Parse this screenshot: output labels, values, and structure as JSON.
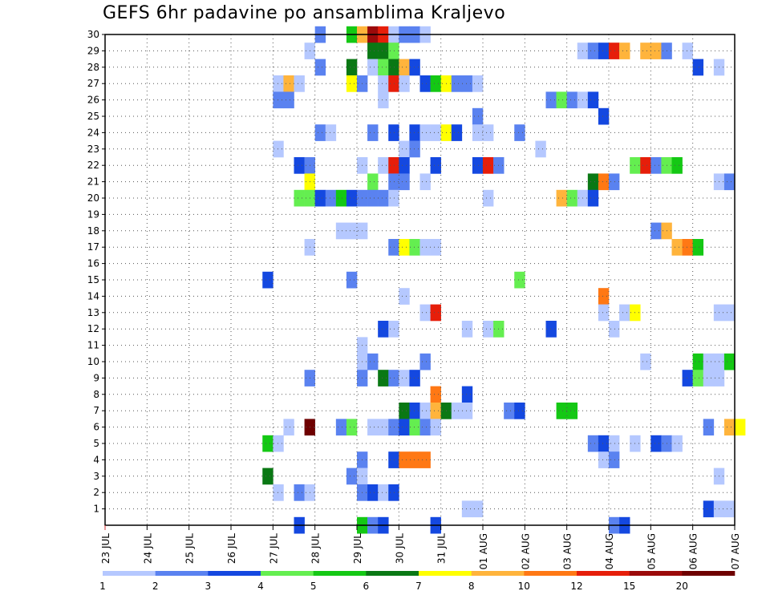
{
  "chart_data": {
    "type": "heatmap",
    "title": "GEFS 6hr padavine po ansamblima Kraljevo",
    "xlabel": "",
    "ylabel": "",
    "y_ticks": [
      1,
      2,
      3,
      4,
      5,
      6,
      7,
      8,
      9,
      10,
      11,
      12,
      13,
      14,
      15,
      16,
      17,
      18,
      19,
      20,
      21,
      22,
      23,
      24,
      25,
      26,
      27,
      28,
      29,
      30
    ],
    "ylim": [
      0,
      30
    ],
    "x_ticks": [
      "23 JUL",
      "24 JUL",
      "25 JUL",
      "26 JUL",
      "27 JUL",
      "28 JUL",
      "29 JUL",
      "30 JUL",
      "31 JUL",
      "01 AUG",
      "02 AUG",
      "03 AUG",
      "04 AUG",
      "05 AUG",
      "06 AUG",
      "07 AUG"
    ],
    "x_steps_per_day": 4,
    "x_step_count": 60,
    "grid": true,
    "colorbar": {
      "labels": [
        "1",
        "2",
        "3",
        "4",
        "5",
        "6",
        "7",
        "8",
        "10",
        "12",
        "15",
        "20"
      ],
      "colors": [
        "#b5c8ff",
        "#5a82f0",
        "#1448e0",
        "#64ee50",
        "#14c814",
        "#0a7814",
        "#ffff00",
        "#ffb43c",
        "#ff7814",
        "#e61e0a",
        "#9b0a0a",
        "#6e0000"
      ]
    },
    "cells": [
      [
        30,
        20,
        2
      ],
      [
        30,
        23,
        5
      ],
      [
        30,
        24,
        8
      ],
      [
        30,
        25,
        11
      ],
      [
        30,
        26,
        10
      ],
      [
        30,
        27,
        1
      ],
      [
        30,
        28,
        2
      ],
      [
        30,
        29,
        2
      ],
      [
        30,
        30,
        1
      ],
      [
        29,
        19,
        1
      ],
      [
        29,
        25,
        6
      ],
      [
        29,
        26,
        6
      ],
      [
        29,
        27,
        4
      ],
      [
        29,
        45,
        1
      ],
      [
        29,
        46,
        2
      ],
      [
        29,
        47,
        3
      ],
      [
        29,
        48,
        10
      ],
      [
        29,
        49,
        8
      ],
      [
        29,
        51,
        8
      ],
      [
        29,
        52,
        8
      ],
      [
        29,
        53,
        2
      ],
      [
        29,
        55,
        1
      ],
      [
        28,
        20,
        2
      ],
      [
        28,
        23,
        6
      ],
      [
        28,
        25,
        1
      ],
      [
        28,
        26,
        4
      ],
      [
        28,
        27,
        6
      ],
      [
        28,
        28,
        8
      ],
      [
        28,
        29,
        3
      ],
      [
        28,
        56,
        3
      ],
      [
        28,
        58,
        1
      ],
      [
        27,
        16,
        1
      ],
      [
        27,
        17,
        8
      ],
      [
        27,
        18,
        1
      ],
      [
        27,
        23,
        7
      ],
      [
        27,
        24,
        2
      ],
      [
        27,
        26,
        1
      ],
      [
        27,
        27,
        10
      ],
      [
        27,
        28,
        1
      ],
      [
        27,
        30,
        3
      ],
      [
        27,
        31,
        5
      ],
      [
        27,
        32,
        7
      ],
      [
        27,
        33,
        2
      ],
      [
        27,
        34,
        2
      ],
      [
        27,
        35,
        1
      ],
      [
        26,
        16,
        2
      ],
      [
        26,
        17,
        2
      ],
      [
        26,
        26,
        1
      ],
      [
        26,
        42,
        2
      ],
      [
        26,
        43,
        4
      ],
      [
        26,
        44,
        2
      ],
      [
        26,
        45,
        1
      ],
      [
        26,
        46,
        3
      ],
      [
        25,
        35,
        2
      ],
      [
        25,
        47,
        3
      ],
      [
        24,
        20,
        2
      ],
      [
        24,
        21,
        1
      ],
      [
        24,
        25,
        2
      ],
      [
        24,
        27,
        3
      ],
      [
        24,
        29,
        3
      ],
      [
        24,
        30,
        1
      ],
      [
        24,
        31,
        1
      ],
      [
        24,
        32,
        7
      ],
      [
        24,
        33,
        3
      ],
      [
        24,
        35,
        1
      ],
      [
        24,
        36,
        1
      ],
      [
        24,
        39,
        2
      ],
      [
        23,
        16,
        1
      ],
      [
        23,
        28,
        1
      ],
      [
        23,
        29,
        2
      ],
      [
        23,
        41,
        1
      ],
      [
        22,
        18,
        3
      ],
      [
        22,
        19,
        2
      ],
      [
        22,
        24,
        1
      ],
      [
        22,
        26,
        1
      ],
      [
        22,
        27,
        10
      ],
      [
        22,
        28,
        3
      ],
      [
        22,
        31,
        3
      ],
      [
        22,
        35,
        3
      ],
      [
        22,
        36,
        10
      ],
      [
        22,
        37,
        2
      ],
      [
        22,
        50,
        4
      ],
      [
        22,
        51,
        10
      ],
      [
        22,
        52,
        2
      ],
      [
        22,
        53,
        4
      ],
      [
        22,
        54,
        5
      ],
      [
        21,
        19,
        7
      ],
      [
        21,
        25,
        4
      ],
      [
        21,
        27,
        2
      ],
      [
        21,
        28,
        2
      ],
      [
        21,
        30,
        1
      ],
      [
        21,
        46,
        6
      ],
      [
        21,
        47,
        9
      ],
      [
        21,
        48,
        2
      ],
      [
        21,
        58,
        1
      ],
      [
        21,
        59,
        2
      ],
      [
        20,
        18,
        4
      ],
      [
        20,
        19,
        4
      ],
      [
        20,
        20,
        3
      ],
      [
        20,
        21,
        2
      ],
      [
        20,
        22,
        5
      ],
      [
        20,
        23,
        3
      ],
      [
        20,
        24,
        2
      ],
      [
        20,
        25,
        2
      ],
      [
        20,
        26,
        2
      ],
      [
        20,
        27,
        1
      ],
      [
        20,
        36,
        1
      ],
      [
        20,
        43,
        8
      ],
      [
        20,
        44,
        4
      ],
      [
        20,
        45,
        1
      ],
      [
        20,
        46,
        3
      ],
      [
        18,
        22,
        1
      ],
      [
        18,
        23,
        1
      ],
      [
        18,
        24,
        1
      ],
      [
        18,
        52,
        2
      ],
      [
        18,
        53,
        8
      ],
      [
        17,
        19,
        1
      ],
      [
        17,
        27,
        2
      ],
      [
        17,
        28,
        7
      ],
      [
        17,
        29,
        4
      ],
      [
        17,
        30,
        1
      ],
      [
        17,
        31,
        1
      ],
      [
        17,
        54,
        8
      ],
      [
        17,
        55,
        9
      ],
      [
        17,
        56,
        5
      ],
      [
        15,
        15,
        3
      ],
      [
        15,
        23,
        2
      ],
      [
        15,
        39,
        4
      ],
      [
        14,
        28,
        1
      ],
      [
        14,
        47,
        9
      ],
      [
        13,
        30,
        1
      ],
      [
        13,
        31,
        10
      ],
      [
        13,
        47,
        1
      ],
      [
        13,
        49,
        1
      ],
      [
        13,
        50,
        7
      ],
      [
        13,
        58,
        1
      ],
      [
        13,
        59,
        1
      ],
      [
        12,
        26,
        3
      ],
      [
        12,
        27,
        1
      ],
      [
        12,
        34,
        1
      ],
      [
        12,
        36,
        1
      ],
      [
        12,
        37,
        4
      ],
      [
        12,
        42,
        3
      ],
      [
        12,
        48,
        1
      ],
      [
        11,
        24,
        1
      ],
      [
        10,
        24,
        1
      ],
      [
        10,
        25,
        2
      ],
      [
        10,
        30,
        2
      ],
      [
        10,
        51,
        1
      ],
      [
        10,
        56,
        5
      ],
      [
        10,
        57,
        1
      ],
      [
        10,
        58,
        1
      ],
      [
        10,
        59,
        5
      ],
      [
        9,
        19,
        2
      ],
      [
        9,
        24,
        2
      ],
      [
        9,
        26,
        6
      ],
      [
        9,
        27,
        2
      ],
      [
        9,
        28,
        1
      ],
      [
        9,
        29,
        3
      ],
      [
        9,
        55,
        3
      ],
      [
        9,
        56,
        4
      ],
      [
        9,
        57,
        1
      ],
      [
        9,
        58,
        1
      ],
      [
        8,
        31,
        9
      ],
      [
        8,
        34,
        3
      ],
      [
        7,
        28,
        6
      ],
      [
        7,
        29,
        3
      ],
      [
        7,
        30,
        1
      ],
      [
        7,
        31,
        8
      ],
      [
        7,
        32,
        6
      ],
      [
        7,
        33,
        1
      ],
      [
        7,
        34,
        1
      ],
      [
        7,
        38,
        2
      ],
      [
        7,
        39,
        3
      ],
      [
        7,
        43,
        5
      ],
      [
        7,
        44,
        5
      ],
      [
        6,
        17,
        1
      ],
      [
        6,
        19,
        12
      ],
      [
        6,
        22,
        2
      ],
      [
        6,
        23,
        4
      ],
      [
        6,
        25,
        1
      ],
      [
        6,
        26,
        1
      ],
      [
        6,
        27,
        2
      ],
      [
        6,
        28,
        3
      ],
      [
        6,
        29,
        4
      ],
      [
        6,
        30,
        2
      ],
      [
        6,
        31,
        1
      ],
      [
        6,
        57,
        2
      ],
      [
        6,
        59,
        8
      ],
      [
        6,
        60,
        7
      ],
      [
        5,
        15,
        5
      ],
      [
        5,
        16,
        1
      ],
      [
        5,
        46,
        2
      ],
      [
        5,
        47,
        3
      ],
      [
        5,
        48,
        1
      ],
      [
        5,
        50,
        1
      ],
      [
        5,
        52,
        3
      ],
      [
        5,
        53,
        2
      ],
      [
        5,
        54,
        1
      ],
      [
        4,
        24,
        2
      ],
      [
        4,
        27,
        3
      ],
      [
        4,
        28,
        9
      ],
      [
        4,
        29,
        9
      ],
      [
        4,
        30,
        9
      ],
      [
        4,
        47,
        1
      ],
      [
        4,
        48,
        2
      ],
      [
        3,
        15,
        6
      ],
      [
        3,
        23,
        2
      ],
      [
        3,
        24,
        1
      ],
      [
        3,
        58,
        1
      ],
      [
        2,
        16,
        1
      ],
      [
        2,
        18,
        2
      ],
      [
        2,
        19,
        1
      ],
      [
        2,
        24,
        2
      ],
      [
        2,
        25,
        3
      ],
      [
        2,
        26,
        1
      ],
      [
        2,
        27,
        3
      ],
      [
        1,
        34,
        1
      ],
      [
        1,
        35,
        1
      ],
      [
        1,
        57,
        3
      ],
      [
        1,
        58,
        1
      ],
      [
        1,
        59,
        1
      ],
      [
        0,
        18,
        3
      ],
      [
        0,
        24,
        5
      ],
      [
        0,
        25,
        2
      ],
      [
        0,
        26,
        3
      ],
      [
        0,
        31,
        3
      ],
      [
        0,
        48,
        2
      ],
      [
        0,
        49,
        3
      ]
    ]
  }
}
